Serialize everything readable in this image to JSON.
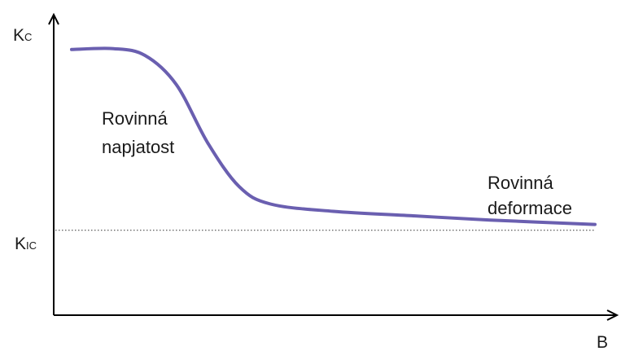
{
  "chart_data": {
    "type": "line",
    "title": "",
    "x_axis": {
      "label": "B",
      "ticks_shown": false
    },
    "y_axis": {
      "label": {
        "main": "K",
        "subscript": "C"
      },
      "ticks_shown": false
    },
    "reference_line": {
      "label": {
        "main": "K",
        "subscript": "IC"
      },
      "style": "dotted",
      "y": 0.28
    },
    "xlim": [
      0,
      1
    ],
    "ylim": [
      0,
      1
    ],
    "series": [
      {
        "color": "#6a5fb0",
        "points": [
          [
            0.0,
            0.9
          ],
          [
            0.08,
            0.903
          ],
          [
            0.14,
            0.88
          ],
          [
            0.2,
            0.78
          ],
          [
            0.26,
            0.58
          ],
          [
            0.32,
            0.43
          ],
          [
            0.38,
            0.37
          ],
          [
            0.5,
            0.345
          ],
          [
            0.65,
            0.33
          ],
          [
            0.8,
            0.315
          ],
          [
            1.0,
            0.3
          ]
        ]
      }
    ],
    "annotations": [
      {
        "lines": [
          "Rovinná",
          "napjatost"
        ],
        "region": "left"
      },
      {
        "lines": [
          "Rovinná",
          "deformace"
        ],
        "region": "right"
      }
    ],
    "grid": false,
    "legend": false
  }
}
